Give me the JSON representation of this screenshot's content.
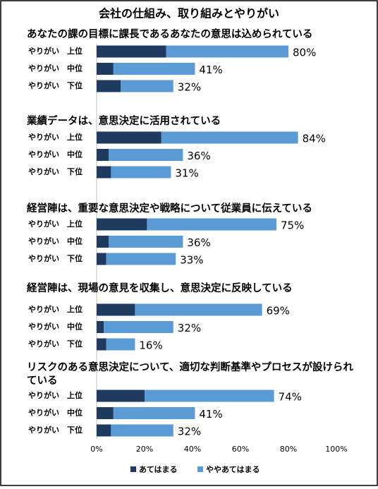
{
  "chart_data": {
    "type": "bar",
    "orientation": "horizontal",
    "stacked": true,
    "title": "会社の仕組み、取り組みとやりがい",
    "xlim": [
      0,
      100
    ],
    "xticks": [
      {
        "value": 0,
        "label": "0%"
      },
      {
        "value": 20,
        "label": "20%"
      },
      {
        "value": 40,
        "label": "40%"
      },
      {
        "value": 60,
        "label": "60%"
      },
      {
        "value": 80,
        "label": "80%"
      },
      {
        "value": 100,
        "label": "100%"
      }
    ],
    "legend_position": "bottom",
    "series": [
      {
        "name": "あてはまる",
        "color": "#1f3a5f"
      },
      {
        "name": "ややあてはまる",
        "color": "#5b9bd5"
      }
    ],
    "panels": [
      {
        "title": "あなたの課の目標に課長であるあなたの意思は込められている",
        "categories": [
          "やりがい　上位",
          "やりがい　中位",
          "やりがい　下位"
        ],
        "series": [
          {
            "values": [
              29,
              7,
              10
            ]
          },
          {
            "values": [
              51,
              34,
              22
            ]
          }
        ],
        "totals": [
          80,
          41,
          32
        ],
        "total_labels": [
          "80%",
          "41%",
          "32%"
        ]
      },
      {
        "title": "業績データは、意思決定に活用されている",
        "categories": [
          "やりがい　上位",
          "やりがい　中位",
          "やりがい　下位"
        ],
        "series": [
          {
            "values": [
              27,
              5,
              6
            ]
          },
          {
            "values": [
              57,
              31,
              25
            ]
          }
        ],
        "totals": [
          84,
          36,
          31
        ],
        "total_labels": [
          "84%",
          "36%",
          "31%"
        ]
      },
      {
        "title": "経営陣は、重要な意思決定や戦略について従業員に伝えている",
        "categories": [
          "やりがい　上位",
          "やりがい　中位",
          "やりがい　下位"
        ],
        "series": [
          {
            "values": [
              21,
              5,
              4
            ]
          },
          {
            "values": [
              54,
              31,
              29
            ]
          }
        ],
        "totals": [
          75,
          36,
          33
        ],
        "total_labels": [
          "75%",
          "36%",
          "33%"
        ]
      },
      {
        "title": "経営陣は、現場の意見を収集し、意思決定に反映している",
        "categories": [
          "やりがい　上位",
          "やりがい　中位",
          "やりがい　下位"
        ],
        "series": [
          {
            "values": [
              16,
              3,
              4
            ]
          },
          {
            "values": [
              53,
              29,
              12
            ]
          }
        ],
        "totals": [
          69,
          32,
          16
        ],
        "total_labels": [
          "69%",
          "32%",
          "16%"
        ]
      },
      {
        "title": "リスクのある意思決定について、適切な判断基準やプロセスが設けられている",
        "categories": [
          "やりがい　上位",
          "やりがい　中位",
          "やりがい　下位"
        ],
        "series": [
          {
            "values": [
              20,
              7,
              6
            ]
          },
          {
            "values": [
              54,
              34,
              26
            ]
          }
        ],
        "totals": [
          74,
          41,
          32
        ],
        "total_labels": [
          "74%",
          "41%",
          "32%"
        ]
      }
    ]
  }
}
